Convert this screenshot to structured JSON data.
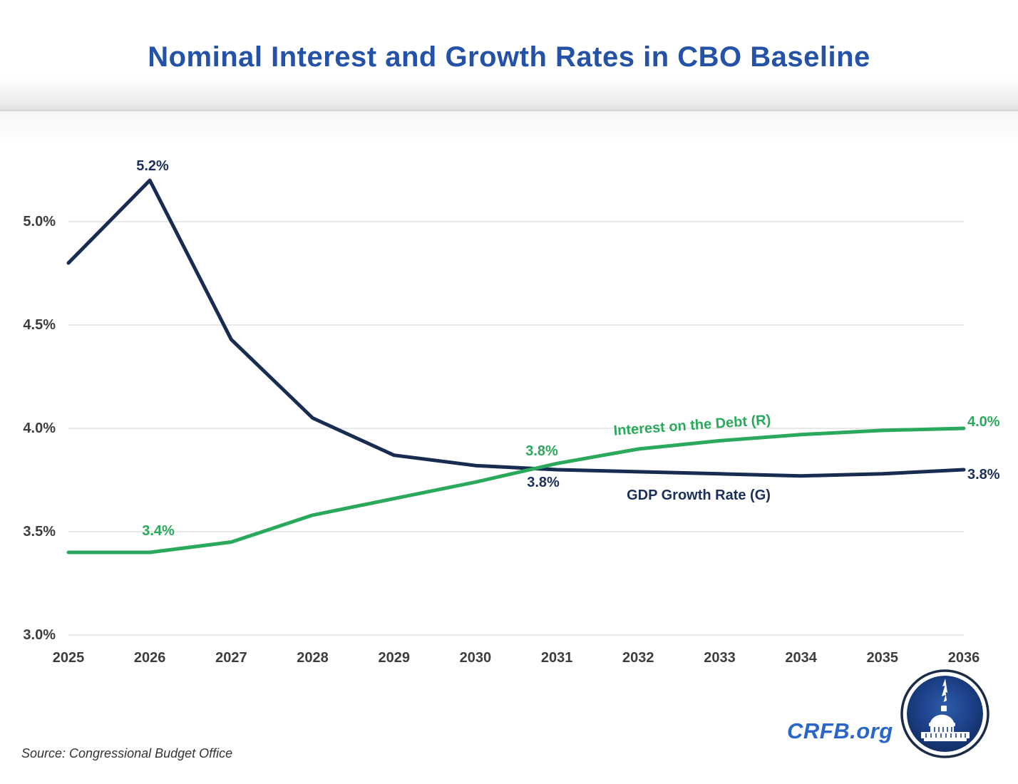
{
  "title": "Nominal Interest and Growth Rates in CBO Baseline",
  "source_note": "Source: Congressional Budget Office",
  "branding": {
    "site_label": "CRFB.org",
    "logo": "capitol-dome-seal"
  },
  "colors": {
    "title_blue": "#2352a6",
    "navy_line": "#182c52",
    "green_line": "#2aa95c",
    "gridline": "#d9d9d9",
    "axis_text": "#3d3d3d",
    "source_text": "#333333",
    "crfb_blue": "#2a66c9",
    "logo_disc": "#1c4086"
  },
  "chart_data": {
    "type": "line",
    "title": "Nominal Interest and Growth Rates in CBO Baseline",
    "categories": [
      "2025",
      "2026",
      "2027",
      "2028",
      "2029",
      "2030",
      "2031",
      "2032",
      "2033",
      "2034",
      "2035",
      "2036"
    ],
    "series": [
      {
        "id": "interest",
        "name": "Interest on the Debt (R)",
        "color": "#2aa95c",
        "values": [
          3.4,
          3.4,
          3.45,
          3.58,
          3.66,
          3.74,
          3.83,
          3.9,
          3.94,
          3.97,
          3.99,
          4.0
        ]
      },
      {
        "id": "gdp",
        "name": "GDP Growth Rate (G)",
        "color": "#182c52",
        "values": [
          4.8,
          5.2,
          4.43,
          4.05,
          3.87,
          3.82,
          3.8,
          3.79,
          3.78,
          3.77,
          3.78,
          3.8
        ]
      }
    ],
    "ylim": [
      3.0,
      5.35
    ],
    "y_ticks": [
      5.0,
      4.5,
      4.0,
      3.5,
      3.0
    ],
    "y_tick_labels": [
      "5.0%",
      "4.5%",
      "4.0%",
      "3.5%",
      "3.0%"
    ],
    "grid": "horizontal-only",
    "legend": "inline-labels",
    "annotations": {
      "gdp_peak": "5.2%",
      "interest_start": "3.4%",
      "interest_cross": "3.8%",
      "gdp_cross": "3.8%",
      "interest_end": "4.0%",
      "gdp_end": "3.8%"
    },
    "series_labels": {
      "interest": "Interest on the Debt (R)",
      "gdp": "GDP Growth Rate (G)"
    }
  }
}
